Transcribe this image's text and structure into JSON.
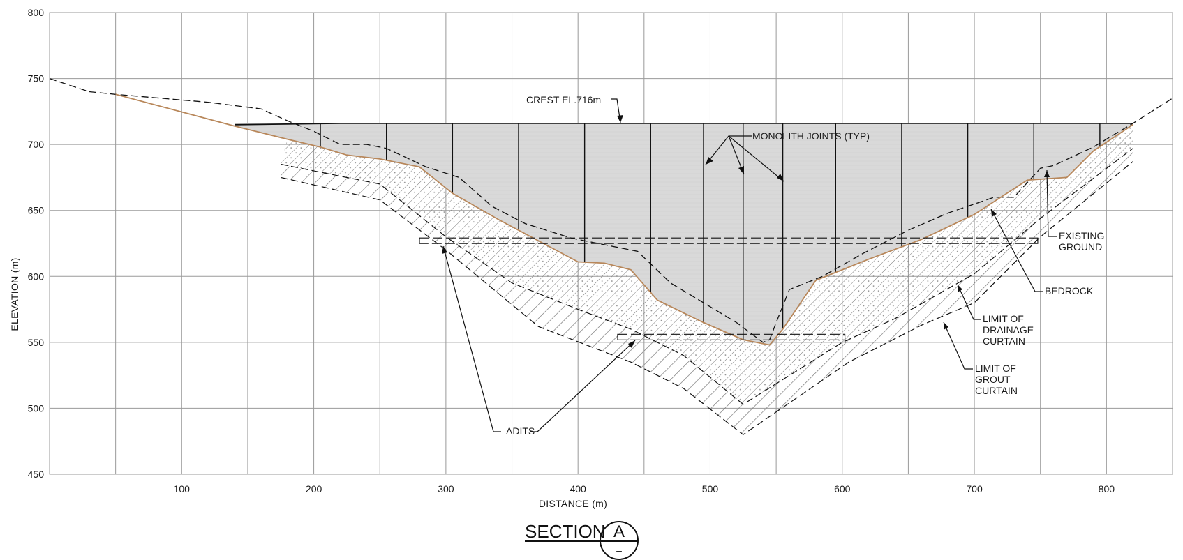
{
  "section": {
    "title": "SECTION",
    "symbol": "A",
    "sub": "–"
  },
  "axes": {
    "xlabel": "DISTANCE (m)",
    "ylabel": "ELEVATION (m)",
    "x_ticks": [
      "100",
      "200",
      "300",
      "400",
      "500",
      "600",
      "700",
      "800"
    ],
    "y_ticks": [
      "800",
      "750",
      "700",
      "650",
      "600",
      "550",
      "500",
      "450"
    ],
    "xlim": [
      0,
      850
    ],
    "ylim": [
      450,
      800
    ]
  },
  "annotations": {
    "crest": "CREST EL.716m",
    "monolith": "MONOLITH JOINTS (TYP)",
    "existing_ground": [
      "EXISTING",
      "GROUND"
    ],
    "bedrock": "BEDROCK",
    "drainage": [
      "LIMIT OF",
      "DRAINAGE",
      "CURTAIN"
    ],
    "grout": [
      "LIMIT OF",
      "GROUT",
      "CURTAIN"
    ],
    "adits": "ADITS"
  },
  "profiles": {
    "crest_elevation": 716,
    "existing_ground": [
      [
        0,
        750
      ],
      [
        30,
        740
      ],
      [
        50,
        738
      ],
      [
        120,
        732
      ],
      [
        160,
        727
      ],
      [
        180,
        718
      ],
      [
        200,
        710
      ],
      [
        220,
        700
      ],
      [
        240,
        700
      ],
      [
        255,
        697
      ],
      [
        285,
        683
      ],
      [
        310,
        675
      ],
      [
        335,
        653
      ],
      [
        360,
        640
      ],
      [
        395,
        629
      ],
      [
        425,
        623
      ],
      [
        445,
        619
      ],
      [
        470,
        595
      ],
      [
        495,
        580
      ],
      [
        520,
        565
      ],
      [
        540,
        550
      ],
      [
        545,
        552
      ],
      [
        550,
        565
      ],
      [
        560,
        590
      ],
      [
        585,
        600
      ],
      [
        615,
        617
      ],
      [
        650,
        635
      ],
      [
        680,
        648
      ],
      [
        715,
        660
      ],
      [
        730,
        660
      ],
      [
        750,
        682
      ],
      [
        760,
        684
      ],
      [
        790,
        698
      ],
      [
        820,
        716
      ],
      [
        850,
        735
      ]
    ],
    "bedrock": [
      [
        50,
        738
      ],
      [
        140,
        714
      ],
      [
        180,
        704
      ],
      [
        205,
        698
      ],
      [
        225,
        692
      ],
      [
        250,
        689
      ],
      [
        280,
        683
      ],
      [
        305,
        663
      ],
      [
        340,
        643
      ],
      [
        400,
        611
      ],
      [
        420,
        610
      ],
      [
        440,
        605
      ],
      [
        460,
        582
      ],
      [
        495,
        565
      ],
      [
        525,
        552
      ],
      [
        545,
        548
      ],
      [
        555,
        560
      ],
      [
        580,
        597
      ],
      [
        620,
        613
      ],
      [
        660,
        628
      ],
      [
        700,
        647
      ],
      [
        740,
        673
      ],
      [
        770,
        675
      ],
      [
        790,
        695
      ],
      [
        820,
        715
      ]
    ],
    "drainage_curtain": [
      [
        175,
        685
      ],
      [
        250,
        670
      ],
      [
        300,
        630
      ],
      [
        350,
        595
      ],
      [
        400,
        575
      ],
      [
        440,
        560
      ],
      [
        480,
        540
      ],
      [
        525,
        503
      ],
      [
        600,
        550
      ],
      [
        640,
        568
      ],
      [
        700,
        602
      ],
      [
        750,
        644
      ],
      [
        820,
        697
      ]
    ],
    "grout_curtain": [
      [
        175,
        675
      ],
      [
        250,
        658
      ],
      [
        300,
        620
      ],
      [
        370,
        562
      ],
      [
        440,
        535
      ],
      [
        480,
        515
      ],
      [
        525,
        480
      ],
      [
        605,
        535
      ],
      [
        660,
        563
      ],
      [
        700,
        580
      ],
      [
        750,
        630
      ],
      [
        820,
        687
      ]
    ],
    "monolith_joints": [
      205,
      255,
      305,
      355,
      405,
      455,
      495,
      525,
      555,
      595,
      645,
      695,
      745,
      795
    ],
    "adits": [
      {
        "x_start": 280,
        "x_end": 748,
        "elevation": 627
      },
      {
        "x_start": 430,
        "x_end": 602,
        "elevation": 554
      }
    ]
  },
  "colors": {
    "dam_fill": "#d9d9d9",
    "bedrock_line": "#b8875a",
    "line": "#111111",
    "grid": "#9a9a9a"
  }
}
